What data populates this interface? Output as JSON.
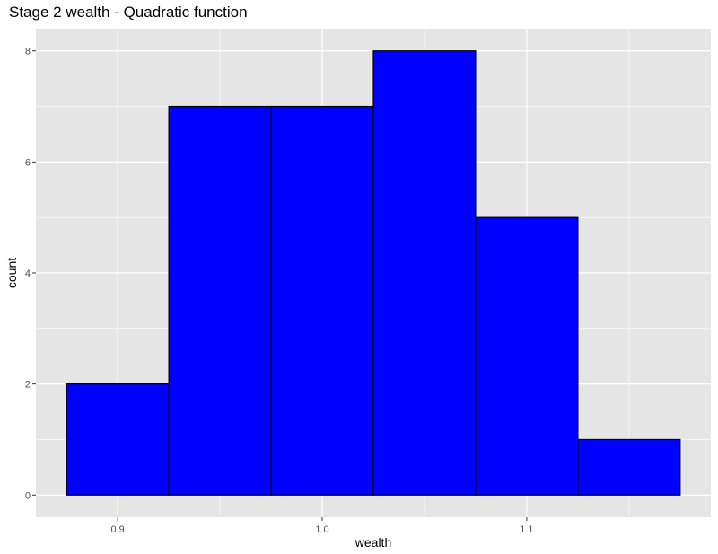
{
  "chart_data": {
    "type": "bar",
    "title": "Stage 2 wealth - Quadratic function",
    "xlabel": "wealth",
    "ylabel": "count",
    "bins": [
      {
        "x_start": 0.875,
        "x_end": 0.925,
        "count": 2
      },
      {
        "x_start": 0.925,
        "x_end": 0.975,
        "count": 7
      },
      {
        "x_start": 0.975,
        "x_end": 1.025,
        "count": 7
      },
      {
        "x_start": 1.025,
        "x_end": 1.075,
        "count": 8
      },
      {
        "x_start": 1.075,
        "x_end": 1.125,
        "count": 5
      },
      {
        "x_start": 1.125,
        "x_end": 1.175,
        "count": 1
      }
    ],
    "xlim": [
      0.86,
      1.19
    ],
    "ylim": [
      -0.4,
      8.4
    ],
    "x_ticks": [
      {
        "value": 0.9,
        "label": "0.9"
      },
      {
        "value": 1.0,
        "label": "1.0"
      },
      {
        "value": 1.1,
        "label": "1.1"
      }
    ],
    "y_ticks": [
      {
        "value": 0,
        "label": "0"
      },
      {
        "value": 2,
        "label": "2"
      },
      {
        "value": 4,
        "label": "4"
      },
      {
        "value": 6,
        "label": "6"
      },
      {
        "value": 8,
        "label": "8"
      }
    ],
    "grid": true,
    "colors": {
      "fill": "#0000FF",
      "outline": "#000000",
      "panel": "#E5E5E5",
      "grid": "#FFFFFF"
    }
  }
}
